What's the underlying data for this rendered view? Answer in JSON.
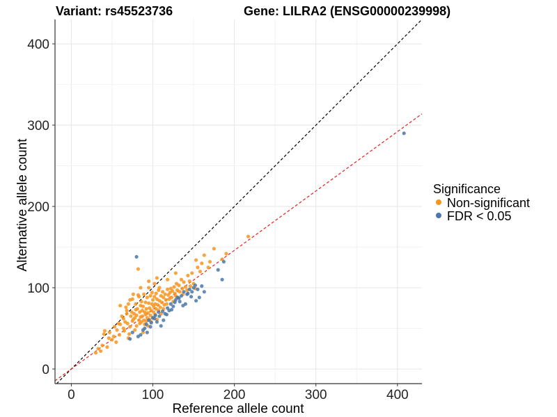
{
  "chart_data": {
    "type": "scatter",
    "title_left": "Variant: rs45523736",
    "title_right": "Gene: LILRA2 (ENSG00000239998)",
    "xlabel": "Reference allele count",
    "ylabel": "Alternative allele count",
    "xlim": [
      -20,
      430
    ],
    "ylim": [
      -18,
      430
    ],
    "x_ticks": [
      0,
      100,
      200,
      300,
      400
    ],
    "y_ticks": [
      0,
      100,
      200,
      300,
      400
    ],
    "grid": true,
    "legend": {
      "title": "Significance",
      "placement": "right",
      "entries": [
        {
          "label": "Non-significant",
          "color": "#f7941d"
        },
        {
          "label": "FDR < 0.05",
          "color": "#4a78ab"
        }
      ]
    },
    "reference_lines": [
      {
        "slope": 1.0,
        "intercept": 0,
        "color": "#000000",
        "style": "dashed"
      },
      {
        "slope": 0.73,
        "intercept": 0,
        "color": "#e8201e",
        "style": "dashed"
      }
    ],
    "series": [
      {
        "name": "Non-significant",
        "color": "#f7941d",
        "points": [
          [
            30,
            20
          ],
          [
            33,
            25
          ],
          [
            36,
            22
          ],
          [
            38,
            29
          ],
          [
            40,
            43
          ],
          [
            41,
            47
          ],
          [
            44,
            27
          ],
          [
            47,
            45
          ],
          [
            50,
            36
          ],
          [
            52,
            40
          ],
          [
            55,
            33
          ],
          [
            56,
            48
          ],
          [
            58,
            56
          ],
          [
            60,
            55
          ],
          [
            60,
            78
          ],
          [
            62,
            65
          ],
          [
            64,
            50
          ],
          [
            65,
            47
          ],
          [
            66,
            58
          ],
          [
            67,
            76
          ],
          [
            68,
            72
          ],
          [
            69,
            56
          ],
          [
            70,
            80
          ],
          [
            70,
            38
          ],
          [
            71,
            43
          ],
          [
            72,
            52
          ],
          [
            73,
            65
          ],
          [
            74,
            70
          ],
          [
            75,
            86
          ],
          [
            75,
            59
          ],
          [
            76,
            61
          ],
          [
            77,
            68
          ],
          [
            78,
            48
          ],
          [
            78,
            63
          ],
          [
            79,
            80
          ],
          [
            80,
            53
          ],
          [
            80,
            66
          ],
          [
            81,
            74
          ],
          [
            82,
            91
          ],
          [
            82,
            123
          ],
          [
            83,
            60
          ],
          [
            83,
            89
          ],
          [
            84,
            56
          ],
          [
            84,
            70
          ],
          [
            85,
            78
          ],
          [
            85,
            64
          ],
          [
            86,
            58
          ],
          [
            86,
            83
          ],
          [
            87,
            65
          ],
          [
            87,
            72
          ],
          [
            88,
            45
          ],
          [
            88,
            77
          ],
          [
            89,
            60
          ],
          [
            89,
            92
          ],
          [
            90,
            55
          ],
          [
            90,
            70
          ],
          [
            91,
            67
          ],
          [
            91,
            82
          ],
          [
            92,
            74
          ],
          [
            92,
            59
          ],
          [
            93,
            63
          ],
          [
            93,
            88
          ],
          [
            94,
            53
          ],
          [
            94,
            69
          ],
          [
            95,
            81
          ],
          [
            95,
            100
          ],
          [
            96,
            75
          ],
          [
            96,
            61
          ],
          [
            97,
            66
          ],
          [
            97,
            90
          ],
          [
            98,
            58
          ],
          [
            98,
            72
          ],
          [
            99,
            80
          ],
          [
            99,
            94
          ],
          [
            100,
            85
          ],
          [
            100,
            63
          ],
          [
            101,
            70
          ],
          [
            101,
            77
          ],
          [
            102,
            89
          ],
          [
            102,
            105
          ],
          [
            103,
            67
          ],
          [
            103,
            80
          ],
          [
            104,
            74
          ],
          [
            104,
            93
          ],
          [
            105,
            61
          ],
          [
            105,
            86
          ],
          [
            106,
            79
          ],
          [
            107,
            72
          ],
          [
            107,
            97
          ],
          [
            108,
            84
          ],
          [
            108,
            100
          ],
          [
            109,
            76
          ],
          [
            110,
            68
          ],
          [
            110,
            90
          ],
          [
            111,
            82
          ],
          [
            112,
            95
          ],
          [
            113,
            74
          ],
          [
            113,
            88
          ],
          [
            114,
            79
          ],
          [
            115,
            92
          ],
          [
            116,
            85
          ],
          [
            117,
            80
          ],
          [
            118,
            98
          ],
          [
            119,
            91
          ],
          [
            120,
            86
          ],
          [
            121,
            94
          ],
          [
            122,
            99
          ],
          [
            123,
            88
          ],
          [
            124,
            96
          ],
          [
            125,
            83
          ],
          [
            126,
            101
          ],
          [
            127,
            93
          ],
          [
            128,
            90
          ],
          [
            129,
            105
          ],
          [
            130,
            97
          ],
          [
            131,
            88
          ],
          [
            132,
            103
          ],
          [
            133,
            95
          ],
          [
            135,
            110
          ],
          [
            136,
            99
          ],
          [
            137,
            92
          ],
          [
            138,
            107
          ],
          [
            140,
            101
          ],
          [
            142,
            97
          ],
          [
            143,
            115
          ],
          [
            145,
            108
          ],
          [
            146,
            102
          ],
          [
            148,
            118
          ],
          [
            150,
            105
          ],
          [
            152,
            99
          ],
          [
            153,
            134
          ],
          [
            155,
            125
          ],
          [
            158,
            120
          ],
          [
            160,
            130
          ],
          [
            163,
            140
          ],
          [
            168,
            125
          ],
          [
            170,
            132
          ],
          [
            175,
            148
          ],
          [
            185,
            135
          ],
          [
            190,
            142
          ],
          [
            217,
            163
          ],
          [
            46,
            38
          ],
          [
            53,
            52
          ],
          [
            59,
            42
          ],
          [
            64,
            62
          ],
          [
            68,
            68
          ],
          [
            72,
            85
          ],
          [
            76,
            92
          ],
          [
            79,
            73
          ],
          [
            85,
            100
          ],
          [
            95,
            108
          ],
          [
            105,
            112
          ],
          [
            118,
            110
          ],
          [
            128,
            118
          ]
        ]
      },
      {
        "name": "FDR < 0.05",
        "color": "#4a78ab",
        "points": [
          [
            72,
            37
          ],
          [
            75,
            45
          ],
          [
            80,
            138
          ],
          [
            82,
            40
          ],
          [
            85,
            42
          ],
          [
            88,
            48
          ],
          [
            90,
            50
          ],
          [
            92,
            55
          ],
          [
            95,
            60
          ],
          [
            98,
            57
          ],
          [
            100,
            63
          ],
          [
            103,
            66
          ],
          [
            105,
            58
          ],
          [
            108,
            65
          ],
          [
            110,
            53
          ],
          [
            112,
            71
          ],
          [
            115,
            68
          ],
          [
            118,
            75
          ],
          [
            120,
            72
          ],
          [
            122,
            80
          ],
          [
            125,
            77
          ],
          [
            128,
            85
          ],
          [
            130,
            88
          ],
          [
            133,
            83
          ],
          [
            135,
            90
          ],
          [
            138,
            95
          ],
          [
            140,
            80
          ],
          [
            143,
            93
          ],
          [
            145,
            98
          ],
          [
            148,
            95
          ],
          [
            150,
            100
          ],
          [
            152,
            103
          ],
          [
            155,
            98
          ],
          [
            157,
            88
          ],
          [
            160,
            102
          ],
          [
            163,
            95
          ],
          [
            180,
            122
          ],
          [
            185,
            110
          ],
          [
            187,
            132
          ],
          [
            408,
            290
          ],
          [
            93,
            45
          ],
          [
            97,
            52
          ],
          [
            102,
            62
          ],
          [
            107,
            70
          ],
          [
            113,
            60
          ],
          [
            117,
            67
          ],
          [
            123,
            73
          ],
          [
            127,
            82
          ],
          [
            132,
            87
          ],
          [
            137,
            78
          ],
          [
            142,
            92
          ],
          [
            147,
            89
          ],
          [
            153,
            84
          ]
        ]
      }
    ]
  }
}
